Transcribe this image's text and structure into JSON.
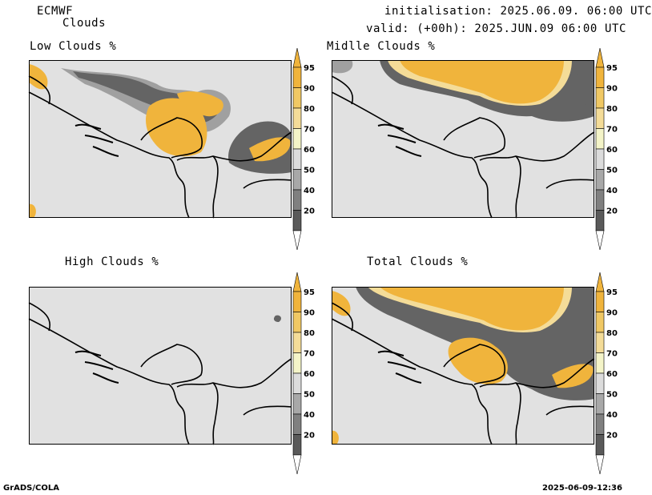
{
  "header": {
    "model": "ECMWF",
    "product": "Clouds",
    "init_line": "initialisation: 2025.06.09. 06:00 UTC",
    "valid_line": "valid: (+00h): 2025.JUN.09 06:00 UTC"
  },
  "panels": [
    {
      "title": "Low Clouds %"
    },
    {
      "title": "Midlle Clouds %"
    },
    {
      "title": "High Clouds %"
    },
    {
      "title": "Total Clouds %"
    }
  ],
  "colorbar": {
    "labels": [
      "95",
      "90",
      "80",
      "70",
      "60",
      "50",
      "40",
      "20"
    ],
    "colors": [
      "#f0b43c",
      "#f0c864",
      "#f4dc98",
      "#f4f4c8",
      "#dcdcdc",
      "#a8a8a8",
      "#808080",
      "#5a5a5a"
    ],
    "tip_top_color": "#f0b43c",
    "tip_bottom_color": "#ffffff"
  },
  "colors": {
    "map_background": "#e1e1e1",
    "cloud_orange": "#f0b43c",
    "cloud_light": "#f4dc98",
    "cloud_dark_gray": "#646464",
    "cloud_mid_gray": "#a0a0a0",
    "border": "#000000"
  },
  "footer": {
    "left": "GrADS/COLA",
    "right": "2025-06-09-12:36"
  }
}
